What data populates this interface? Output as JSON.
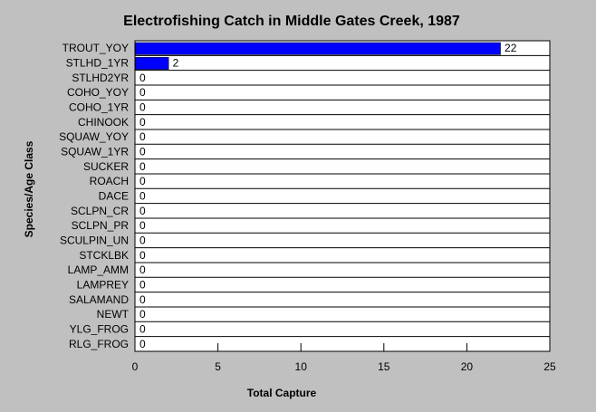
{
  "chart_data": {
    "type": "bar",
    "orientation": "horizontal",
    "title": "Electrofishing Catch in Middle Gates Creek, 1987",
    "xlabel": "Total Capture",
    "ylabel": "Species/Age Class",
    "categories": [
      "TROUT_YOY",
      "STLHD_1YR",
      "STLHD2YR",
      "COHO_YOY",
      "COHO_1YR",
      "CHINOOK",
      "SQUAW_YOY",
      "SQUAW_1YR",
      "SUCKER",
      "ROACH",
      "DACE",
      "SCLPN_CR",
      "SCLPN_PR",
      "SCULPIN_UN",
      "STCKLBK",
      "LAMP_AMM",
      "LAMPREY",
      "SALAMAND",
      "NEWT",
      "YLG_FROG",
      "RLG_FROG"
    ],
    "values": [
      22,
      2,
      0,
      0,
      0,
      0,
      0,
      0,
      0,
      0,
      0,
      0,
      0,
      0,
      0,
      0,
      0,
      0,
      0,
      0,
      0
    ],
    "xlim": [
      0,
      25
    ],
    "xticks": [
      0,
      5,
      10,
      15,
      20,
      25
    ],
    "bar_color": "#0000ff",
    "grid": true
  }
}
